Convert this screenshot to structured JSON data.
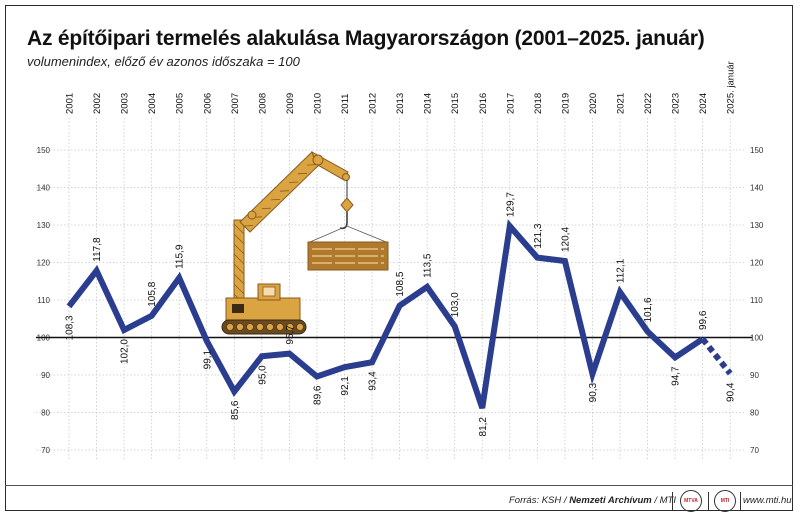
{
  "title": "Az építőipari termelés alakulása Magyarországon (2001–2025. január)",
  "subtitle": "volumenindex, előző év azonos időszaka = 100",
  "footer": {
    "source_prefix": "Forrás: KSH / ",
    "source_archive": "Nemzeti Archívum",
    "source_suffix": " / MTI",
    "logo_left": "MTVA",
    "logo_right": "MTI",
    "site": "www.mti.hu"
  },
  "colors": {
    "line": "#2a3d8f",
    "crane": "#d9a441",
    "crane_dark": "#8a5a1c",
    "grid": "#c8c8c8",
    "baseline": "#111111"
  },
  "icons": [
    "tower-crane-icon"
  ],
  "chart_data": {
    "type": "line",
    "categories": [
      "2001",
      "2002",
      "2003",
      "2004",
      "2005",
      "2006",
      "2007",
      "2008",
      "2009",
      "2010",
      "2011",
      "2012",
      "2013",
      "2014",
      "2015",
      "2016",
      "2017",
      "2018",
      "2019",
      "2020",
      "2021",
      "2022",
      "2023",
      "2024",
      "2025. január"
    ],
    "values": [
      108.3,
      117.8,
      102.0,
      105.8,
      115.9,
      99.1,
      85.6,
      95.0,
      95.7,
      89.6,
      92.1,
      93.4,
      108.5,
      113.5,
      103.0,
      81.2,
      129.7,
      121.3,
      120.4,
      90.3,
      112.1,
      101.6,
      94.7,
      99.6,
      90.4
    ],
    "data_labels": [
      "108,3",
      "117,8",
      "102,0",
      "105,8",
      "115,9",
      "99,1",
      "85,6",
      "95,0",
      "95,7",
      "89,6",
      "92,1",
      "93,4",
      "108,5",
      "113,5",
      "103,0",
      "81,2",
      "129,7",
      "121,3",
      "120,4",
      "90,3",
      "112,1",
      "101,6",
      "94,7",
      "99,6",
      "90,4"
    ],
    "last_segment_style": "dashed",
    "ylim": [
      70,
      150
    ],
    "yticks": [
      "150",
      "140",
      "130",
      "120",
      "110",
      "100",
      "90",
      "80",
      "70"
    ],
    "baseline": 100,
    "grid": true,
    "xlabel": "",
    "ylabel": ""
  }
}
